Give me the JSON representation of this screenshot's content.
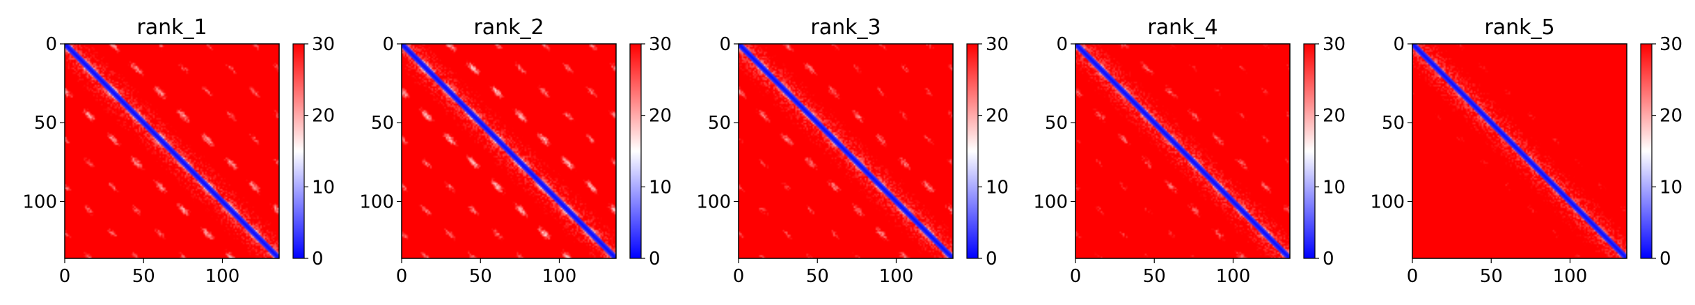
{
  "chart_data": [
    {
      "type": "heatmap",
      "title": "rank_1",
      "size": 136,
      "xticks": [
        0,
        50,
        100
      ],
      "yticks": [
        0,
        50,
        100
      ],
      "colorbar": {
        "min": 0,
        "max": 30,
        "ticks": [
          0,
          10,
          20,
          30
        ],
        "colormap": "bwr"
      },
      "diagonal_distance": 0,
      "off_diagonal_period": 30,
      "pattern_strength": 1.0
    },
    {
      "type": "heatmap",
      "title": "rank_2",
      "size": 136,
      "xticks": [
        0,
        50,
        100
      ],
      "yticks": [
        0,
        50,
        100
      ],
      "colorbar": {
        "min": 0,
        "max": 30,
        "ticks": [
          0,
          10,
          20,
          30
        ],
        "colormap": "bwr"
      },
      "diagonal_distance": 0,
      "off_diagonal_period": 30,
      "pattern_strength": 1.1
    },
    {
      "type": "heatmap",
      "title": "rank_3",
      "size": 136,
      "xticks": [
        0,
        50,
        100
      ],
      "yticks": [
        0,
        50,
        100
      ],
      "colorbar": {
        "min": 0,
        "max": 30,
        "ticks": [
          0,
          10,
          20,
          30
        ],
        "colormap": "bwr"
      },
      "diagonal_distance": 0,
      "off_diagonal_period": 30,
      "pattern_strength": 0.9
    },
    {
      "type": "heatmap",
      "title": "rank_4",
      "size": 136,
      "xticks": [
        0,
        50,
        100
      ],
      "yticks": [
        0,
        50,
        100
      ],
      "colorbar": {
        "min": 0,
        "max": 30,
        "ticks": [
          0,
          10,
          20,
          30
        ],
        "colormap": "bwr"
      },
      "diagonal_distance": 0,
      "off_diagonal_period": 30,
      "pattern_strength": 0.8
    },
    {
      "type": "heatmap",
      "title": "rank_5",
      "size": 136,
      "xticks": [
        0,
        50,
        100
      ],
      "yticks": [
        0,
        50,
        100
      ],
      "colorbar": {
        "min": 0,
        "max": 30,
        "ticks": [
          0,
          10,
          20,
          30
        ],
        "colormap": "bwr"
      },
      "diagonal_distance": 0,
      "off_diagonal_period": 30,
      "pattern_strength": 0.45
    }
  ],
  "colors": {
    "low": "#0000ff",
    "mid": "#ffffff",
    "high": "#ff0000"
  }
}
